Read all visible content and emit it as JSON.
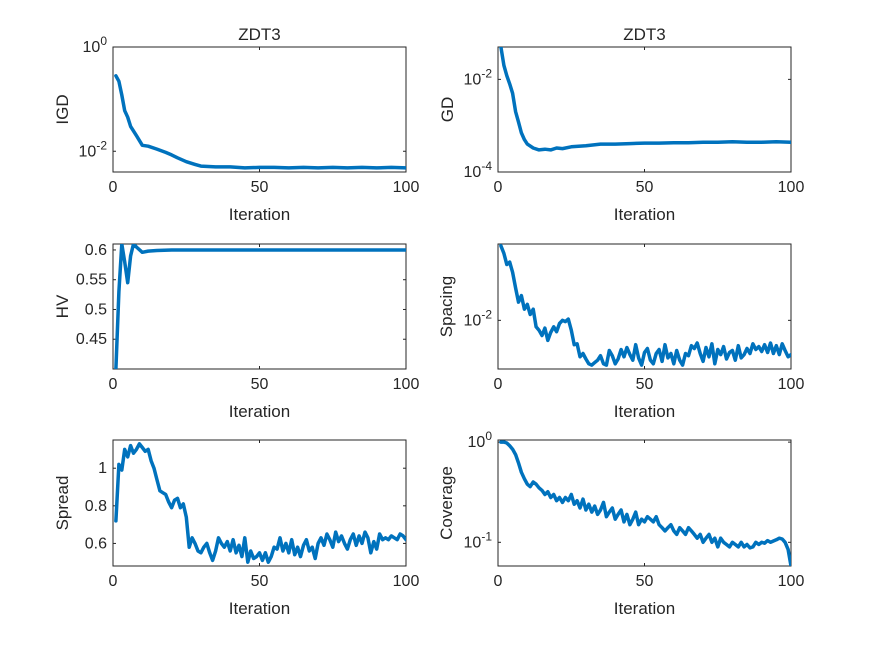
{
  "figure": {
    "line_color": "#0072BD",
    "axes_color": "#262626",
    "background": "#ffffff"
  },
  "chart_data": [
    {
      "type": "line",
      "title": "ZDT3",
      "xlabel": "Iteration",
      "ylabel": "IGD",
      "xlim": [
        0,
        100
      ],
      "ylim": [
        0.004,
        1
      ],
      "yscale": "log",
      "grid": false,
      "xticks": [
        0,
        50,
        100
      ],
      "xtick_labels": [
        "0",
        "50",
        "100"
      ],
      "yticks": [
        0.01,
        1
      ],
      "ytick_labels": [
        "10^-2",
        "10^0"
      ],
      "series": [
        {
          "x": [
            1,
            2,
            3,
            4,
            5,
            6,
            8,
            10,
            12,
            15,
            18,
            20,
            22,
            25,
            28,
            30,
            35,
            40,
            45,
            50,
            55,
            60,
            65,
            70,
            75,
            80,
            85,
            90,
            95,
            100
          ],
          "y": [
            0.28,
            0.22,
            0.12,
            0.06,
            0.045,
            0.03,
            0.02,
            0.013,
            0.0125,
            0.011,
            0.0095,
            0.0085,
            0.0075,
            0.0063,
            0.0056,
            0.0052,
            0.005,
            0.005,
            0.0048,
            0.0049,
            0.0049,
            0.0048,
            0.0049,
            0.0048,
            0.0049,
            0.0048,
            0.0049,
            0.0048,
            0.0049,
            0.0048
          ]
        }
      ]
    },
    {
      "type": "line",
      "title": "ZDT3",
      "xlabel": "Iteration",
      "ylabel": "GD",
      "xlim": [
        0,
        100
      ],
      "ylim": [
        0.0001,
        0.05
      ],
      "yscale": "log",
      "grid": false,
      "xticks": [
        0,
        50,
        100
      ],
      "xtick_labels": [
        "0",
        "50",
        "100"
      ],
      "yticks": [
        0.0001,
        0.01
      ],
      "ytick_labels": [
        "10^-4",
        "10^-2"
      ],
      "series": [
        {
          "x": [
            1,
            2,
            3,
            4,
            5,
            6,
            7,
            8,
            9,
            10,
            12,
            14,
            16,
            18,
            20,
            22,
            25,
            30,
            35,
            40,
            45,
            50,
            55,
            60,
            65,
            70,
            75,
            80,
            85,
            90,
            95,
            100
          ],
          "y": [
            0.05,
            0.02,
            0.012,
            0.008,
            0.005,
            0.002,
            0.0012,
            0.0007,
            0.0005,
            0.0004,
            0.00033,
            0.0003,
            0.00031,
            0.0003,
            0.00033,
            0.00032,
            0.00035,
            0.00037,
            0.0004,
            0.0004,
            0.00041,
            0.00042,
            0.00042,
            0.00043,
            0.00043,
            0.00044,
            0.00044,
            0.00045,
            0.00044,
            0.00044,
            0.00045,
            0.00044
          ]
        }
      ]
    },
    {
      "type": "line",
      "title": "",
      "xlabel": "Iteration",
      "ylabel": "HV",
      "xlim": [
        0,
        100
      ],
      "ylim": [
        0.4,
        0.61
      ],
      "yscale": "linear",
      "grid": false,
      "xticks": [
        0,
        50,
        100
      ],
      "xtick_labels": [
        "0",
        "50",
        "100"
      ],
      "yticks": [
        0.45,
        0.5,
        0.55,
        0.6
      ],
      "ytick_labels": [
        "0.45",
        "0.5",
        "0.55",
        "0.6"
      ],
      "series": [
        {
          "x": [
            1,
            2,
            3,
            4,
            5,
            6,
            7,
            8,
            10,
            12,
            15,
            20,
            25,
            30,
            40,
            50,
            60,
            70,
            80,
            90,
            100
          ],
          "y": [
            0.4,
            0.53,
            0.61,
            0.58,
            0.545,
            0.59,
            0.61,
            0.605,
            0.596,
            0.598,
            0.599,
            0.6,
            0.6,
            0.6,
            0.6,
            0.6,
            0.6,
            0.6,
            0.6,
            0.6,
            0.6
          ]
        }
      ]
    },
    {
      "type": "line",
      "title": "",
      "xlabel": "Iteration",
      "ylabel": "Spacing",
      "xlim": [
        0,
        100
      ],
      "ylim": [
        0.0045,
        0.035
      ],
      "yscale": "log",
      "grid": false,
      "xticks": [
        0,
        50,
        100
      ],
      "xtick_labels": [
        "0",
        "50",
        "100"
      ],
      "yticks": [
        0.01
      ],
      "ytick_labels": [
        "10^-2"
      ],
      "series": [
        {
          "x": [
            1,
            2,
            3,
            4,
            5,
            6,
            7,
            8,
            9,
            10,
            11,
            12,
            13,
            14,
            15,
            16,
            17,
            18,
            19,
            20,
            21,
            22,
            23,
            24,
            25,
            26,
            27,
            28,
            29,
            30,
            31,
            32,
            33,
            34,
            35,
            36,
            37,
            38,
            39,
            40,
            41,
            42,
            43,
            44,
            45,
            46,
            47,
            48,
            49,
            50,
            51,
            52,
            53,
            54,
            55,
            56,
            57,
            58,
            59,
            60,
            61,
            62,
            63,
            64,
            65,
            66,
            67,
            68,
            69,
            70,
            71,
            72,
            73,
            74,
            75,
            76,
            77,
            78,
            79,
            80,
            81,
            82,
            83,
            84,
            85,
            86,
            87,
            88,
            89,
            90,
            91,
            92,
            93,
            94,
            95,
            96,
            97,
            98,
            99,
            100
          ],
          "y": [
            0.034,
            0.03,
            0.025,
            0.026,
            0.022,
            0.017,
            0.0135,
            0.015,
            0.012,
            0.013,
            0.011,
            0.012,
            0.009,
            0.0085,
            0.0078,
            0.0088,
            0.0072,
            0.0082,
            0.009,
            0.0083,
            0.0095,
            0.01,
            0.0098,
            0.0102,
            0.0085,
            0.0067,
            0.0068,
            0.0055,
            0.0058,
            0.0053,
            0.0049,
            0.0048,
            0.005,
            0.0052,
            0.0056,
            0.0049,
            0.0048,
            0.0061,
            0.0056,
            0.0049,
            0.0053,
            0.0062,
            0.0055,
            0.0064,
            0.0057,
            0.0052,
            0.0067,
            0.0054,
            0.0048,
            0.0059,
            0.0063,
            0.0052,
            0.0049,
            0.0058,
            0.0062,
            0.0051,
            0.0067,
            0.0054,
            0.0058,
            0.0049,
            0.0061,
            0.0052,
            0.0048,
            0.0058,
            0.0056,
            0.0066,
            0.0063,
            0.0069,
            0.0058,
            0.0051,
            0.0064,
            0.0055,
            0.0068,
            0.0049,
            0.0062,
            0.0057,
            0.0065,
            0.0053,
            0.0059,
            0.0061,
            0.0052,
            0.0066,
            0.0054,
            0.0057,
            0.0063,
            0.0058,
            0.0068,
            0.0062,
            0.0065,
            0.006,
            0.0067,
            0.0059,
            0.0069,
            0.0058,
            0.0066,
            0.0057,
            0.0068,
            0.0061,
            0.0055,
            0.0057
          ]
        }
      ]
    },
    {
      "type": "line",
      "title": "",
      "xlabel": "Iteration",
      "ylabel": "Spread",
      "xlim": [
        0,
        100
      ],
      "ylim": [
        0.48,
        1.15
      ],
      "yscale": "linear",
      "grid": false,
      "xticks": [
        0,
        50,
        100
      ],
      "xtick_labels": [
        "0",
        "50",
        "100"
      ],
      "yticks": [
        0.6,
        0.8,
        1.0
      ],
      "ytick_labels": [
        "0.6",
        "0.8",
        "1"
      ],
      "series": [
        {
          "x": [
            1,
            2,
            3,
            4,
            5,
            6,
            7,
            8,
            9,
            10,
            11,
            12,
            13,
            14,
            15,
            16,
            17,
            18,
            19,
            20,
            21,
            22,
            23,
            24,
            25,
            26,
            27,
            28,
            29,
            30,
            31,
            32,
            33,
            34,
            35,
            36,
            37,
            38,
            39,
            40,
            41,
            42,
            43,
            44,
            45,
            46,
            47,
            48,
            49,
            50,
            51,
            52,
            53,
            54,
            55,
            56,
            57,
            58,
            59,
            60,
            61,
            62,
            63,
            64,
            65,
            66,
            67,
            68,
            69,
            70,
            71,
            72,
            73,
            74,
            75,
            76,
            77,
            78,
            79,
            80,
            81,
            82,
            83,
            84,
            85,
            86,
            87,
            88,
            89,
            90,
            91,
            92,
            93,
            94,
            95,
            96,
            97,
            98,
            99,
            100
          ],
          "y": [
            0.72,
            1.02,
            0.99,
            1.1,
            1.06,
            1.12,
            1.08,
            1.1,
            1.13,
            1.11,
            1.09,
            1.1,
            1.04,
            1.0,
            0.94,
            0.88,
            0.87,
            0.86,
            0.82,
            0.79,
            0.83,
            0.84,
            0.79,
            0.81,
            0.74,
            0.58,
            0.63,
            0.6,
            0.56,
            0.55,
            0.58,
            0.6,
            0.55,
            0.51,
            0.56,
            0.63,
            0.6,
            0.58,
            0.61,
            0.56,
            0.62,
            0.55,
            0.59,
            0.53,
            0.63,
            0.5,
            0.56,
            0.52,
            0.53,
            0.55,
            0.51,
            0.55,
            0.5,
            0.53,
            0.58,
            0.57,
            0.63,
            0.56,
            0.6,
            0.55,
            0.62,
            0.54,
            0.58,
            0.53,
            0.59,
            0.62,
            0.56,
            0.58,
            0.52,
            0.6,
            0.63,
            0.59,
            0.65,
            0.62,
            0.58,
            0.66,
            0.61,
            0.64,
            0.6,
            0.57,
            0.62,
            0.65,
            0.59,
            0.64,
            0.6,
            0.66,
            0.63,
            0.55,
            0.61,
            0.57,
            0.65,
            0.62,
            0.63,
            0.62,
            0.64,
            0.63,
            0.62,
            0.65,
            0.64,
            0.62
          ]
        }
      ]
    },
    {
      "type": "line",
      "title": "",
      "xlabel": "Iteration",
      "ylabel": "Coverage",
      "xlim": [
        0,
        100
      ],
      "ylim": [
        0.058,
        1.05
      ],
      "yscale": "log",
      "grid": false,
      "xticks": [
        0,
        50,
        100
      ],
      "xtick_labels": [
        "0",
        "50",
        "100"
      ],
      "yticks": [
        0.1,
        1
      ],
      "ytick_labels": [
        "10^-1",
        "10^0"
      ],
      "series": [
        {
          "x": [
            1,
            2,
            3,
            4,
            5,
            6,
            7,
            8,
            9,
            10,
            11,
            12,
            13,
            14,
            15,
            16,
            17,
            18,
            19,
            20,
            21,
            22,
            23,
            24,
            25,
            26,
            27,
            28,
            29,
            30,
            31,
            32,
            33,
            34,
            35,
            36,
            37,
            38,
            39,
            40,
            41,
            42,
            43,
            44,
            45,
            46,
            47,
            48,
            49,
            50,
            51,
            52,
            53,
            54,
            55,
            56,
            57,
            58,
            59,
            60,
            61,
            62,
            63,
            64,
            65,
            66,
            67,
            68,
            69,
            70,
            71,
            72,
            73,
            74,
            75,
            76,
            77,
            78,
            79,
            80,
            81,
            82,
            83,
            84,
            85,
            86,
            87,
            88,
            89,
            90,
            91,
            92,
            93,
            94,
            95,
            96,
            97,
            98,
            99,
            100
          ],
          "y": [
            1.0,
            1.0,
            0.98,
            0.92,
            0.85,
            0.75,
            0.62,
            0.5,
            0.43,
            0.38,
            0.36,
            0.4,
            0.38,
            0.35,
            0.33,
            0.3,
            0.32,
            0.28,
            0.3,
            0.26,
            0.28,
            0.25,
            0.28,
            0.26,
            0.3,
            0.24,
            0.26,
            0.22,
            0.27,
            0.21,
            0.24,
            0.2,
            0.23,
            0.19,
            0.21,
            0.25,
            0.18,
            0.2,
            0.22,
            0.17,
            0.19,
            0.21,
            0.16,
            0.19,
            0.15,
            0.17,
            0.2,
            0.15,
            0.17,
            0.16,
            0.18,
            0.17,
            0.16,
            0.18,
            0.15,
            0.14,
            0.13,
            0.14,
            0.15,
            0.13,
            0.12,
            0.14,
            0.13,
            0.12,
            0.14,
            0.13,
            0.12,
            0.11,
            0.12,
            0.1,
            0.11,
            0.12,
            0.1,
            0.11,
            0.09,
            0.11,
            0.1,
            0.095,
            0.09,
            0.1,
            0.095,
            0.09,
            0.1,
            0.09,
            0.095,
            0.088,
            0.09,
            0.1,
            0.095,
            0.1,
            0.098,
            0.104,
            0.1,
            0.103,
            0.106,
            0.11,
            0.108,
            0.1,
            0.085,
            0.058
          ]
        }
      ]
    }
  ]
}
